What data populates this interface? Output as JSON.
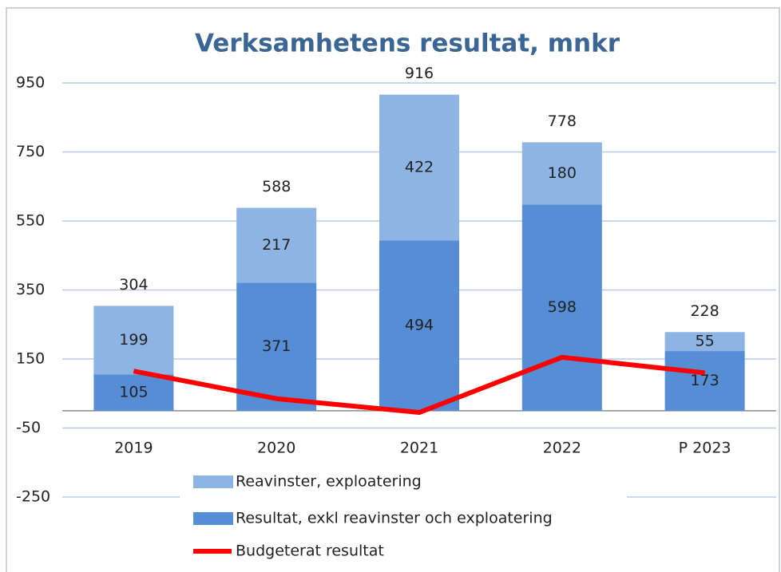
{
  "chart_data": {
    "type": "bar",
    "stacked": true,
    "title": "Verksamhetens resultat, mnkr",
    "categories": [
      "2019",
      "2020",
      "2021",
      "2022",
      "P 2023"
    ],
    "series": [
      {
        "name": "Resultat, exkl reavinster och exploatering",
        "color": "#558ed5",
        "values": [
          105,
          371,
          494,
          598,
          173
        ]
      },
      {
        "name": "Reavinster, exploatering",
        "color": "#8eb4e3",
        "values": [
          199,
          217,
          422,
          180,
          55
        ]
      },
      {
        "name": "Budgeterat resultat",
        "type": "line",
        "color": "#ff0000",
        "values": [
          115,
          35,
          -5,
          155,
          110
        ]
      }
    ],
    "totals": [
      304,
      588,
      916,
      778,
      228
    ],
    "ylim": [
      -250,
      950
    ],
    "yticks": [
      -250,
      -50,
      150,
      350,
      550,
      750,
      950
    ],
    "grid": true
  }
}
